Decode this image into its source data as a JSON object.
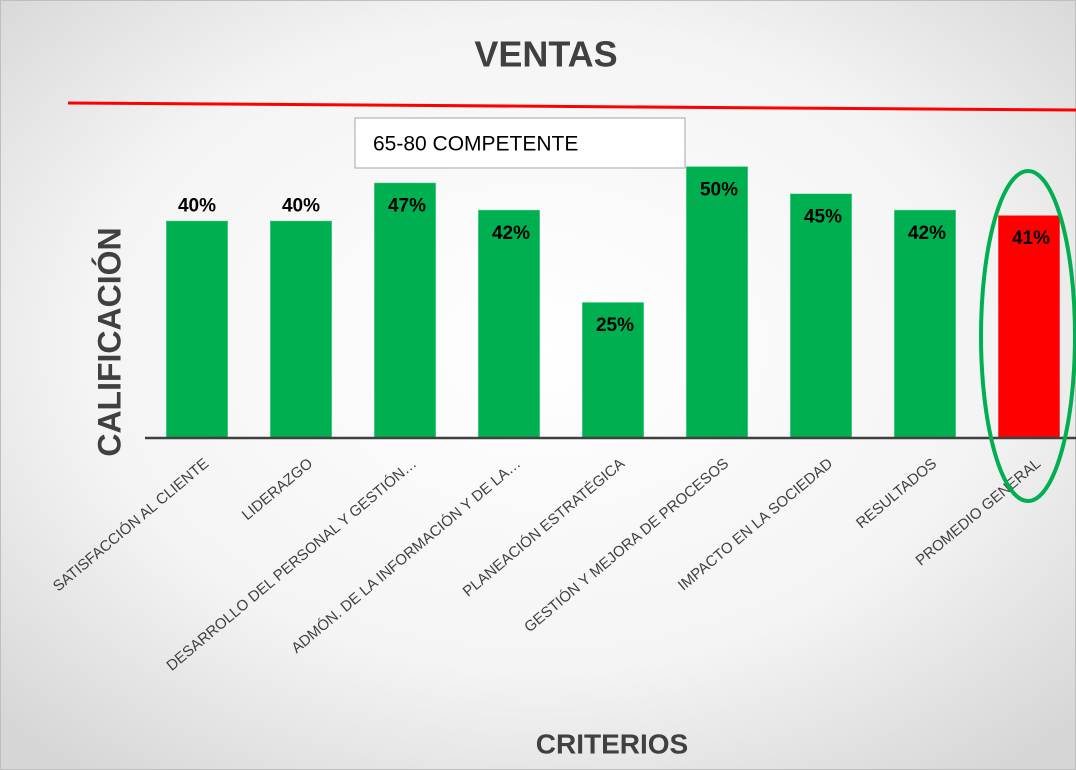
{
  "chart_data": {
    "type": "bar",
    "title": "VENTAS",
    "categories": [
      "SATISFACCIÓN AL CLIENTE",
      "LIDERAZGO",
      "DESARROLLO DEL PERSONAL Y GESTIÓN…",
      "ADMÓN. DE LA INFORMACIÓN Y DE LA…",
      "PLANEACIÓN ESTRATÉGICA",
      "GESTIÓN Y MEJORA DE PROCESOS",
      "IMPACTO EN LA SOCIEDAD",
      "RESULTADOS",
      "PROMEDIO GENERAL"
    ],
    "values": [
      40,
      40,
      47,
      42,
      25,
      50,
      45,
      42,
      41
    ],
    "value_labels": [
      "40%",
      "40%",
      "47%",
      "42%",
      "25%",
      "50%",
      "45%",
      "42%",
      "41%"
    ],
    "colors": [
      "#00b050",
      "#00b050",
      "#00b050",
      "#00b050",
      "#00b050",
      "#00b050",
      "#00b050",
      "#00b050",
      "#ff0000"
    ],
    "ylim": [
      0,
      60
    ],
    "y_label": "CALIFICACIÓN",
    "x_label": "CRITERIOS",
    "annotation": "65-80 COMPETENTE"
  }
}
